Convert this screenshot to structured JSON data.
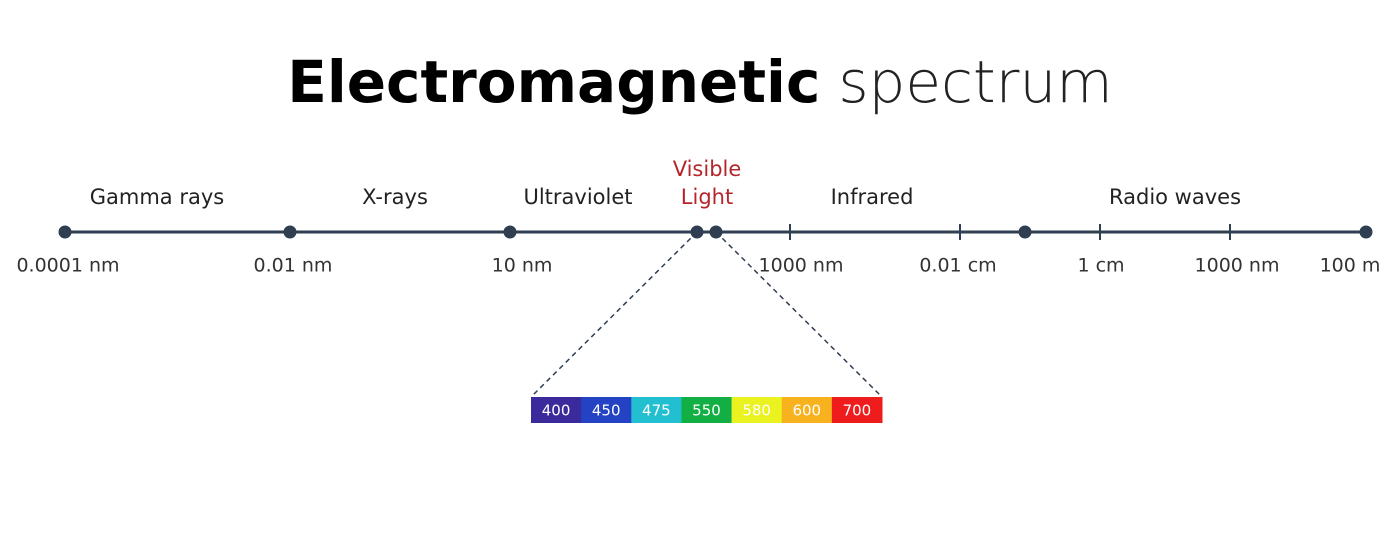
{
  "title": {
    "bold": "Electromagnetic",
    "light": "spectrum"
  },
  "bands": [
    {
      "label": [
        "Gamma rays"
      ]
    },
    {
      "label": [
        "X-rays"
      ]
    },
    {
      "label": [
        "Ultraviolet"
      ]
    },
    {
      "label": [
        "Visible",
        "Light"
      ],
      "highlight": true
    },
    {
      "label": [
        "Infrared"
      ]
    },
    {
      "label": [
        "Radio waves"
      ]
    }
  ],
  "scale_labels": [
    "0.0001 nm",
    "0.01 nm",
    "10 nm",
    "1000 nm",
    "0.01 cm",
    "1 cm",
    "1000 nm",
    "100 m"
  ],
  "visible_spectrum": [
    {
      "label": "400",
      "color": "#3b2a9c"
    },
    {
      "label": "450",
      "color": "#2342c4"
    },
    {
      "label": "475",
      "color": "#22bfd0"
    },
    {
      "label": "550",
      "color": "#12b044"
    },
    {
      "label": "580",
      "color": "#eaf21f"
    },
    {
      "label": "600",
      "color": "#f8b21e"
    },
    {
      "label": "700",
      "color": "#ee1c1c"
    }
  ]
}
